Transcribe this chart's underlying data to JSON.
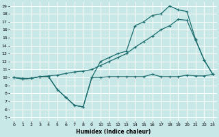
{
  "xlabel": "Humidex (Indice chaleur)",
  "bg_color": "#c8e8e8",
  "grid_color": "#ffffff",
  "line_color": "#1a6b6b",
  "xlim": [
    -0.5,
    23.5
  ],
  "ylim": [
    4.5,
    19.5
  ],
  "yticks": [
    5,
    6,
    7,
    8,
    9,
    10,
    11,
    12,
    13,
    14,
    15,
    16,
    17,
    18,
    19
  ],
  "xticks": [
    0,
    1,
    2,
    3,
    4,
    5,
    6,
    7,
    8,
    9,
    10,
    11,
    12,
    13,
    14,
    15,
    16,
    17,
    18,
    19,
    20,
    21,
    22,
    23
  ],
  "line1_x": [
    0,
    1,
    2,
    3,
    4,
    5,
    6,
    7,
    8,
    9,
    10,
    11,
    12,
    13,
    14,
    15,
    16,
    17,
    18,
    19,
    20,
    21,
    22,
    23
  ],
  "line1_y": [
    10.0,
    9.8,
    9.9,
    10.1,
    10.1,
    8.5,
    7.5,
    6.5,
    6.3,
    10.0,
    10.0,
    10.1,
    10.1,
    10.1,
    10.1,
    10.1,
    10.4,
    10.1,
    10.1,
    10.1,
    10.3,
    10.2,
    10.2,
    10.4
  ],
  "line2_x": [
    0,
    1,
    2,
    3,
    4,
    5,
    6,
    7,
    8,
    9,
    10,
    11,
    12,
    13,
    14,
    15,
    16,
    17,
    18,
    19,
    20,
    21,
    22,
    23
  ],
  "line2_y": [
    10.0,
    9.9,
    9.9,
    10.1,
    10.2,
    10.3,
    10.5,
    10.7,
    10.8,
    11.0,
    11.5,
    12.0,
    12.5,
    13.0,
    13.8,
    14.5,
    15.2,
    16.0,
    16.5,
    17.3,
    17.2,
    14.7,
    12.2,
    10.4
  ],
  "line3_x": [
    0,
    1,
    2,
    3,
    4,
    5,
    6,
    7,
    8,
    9,
    10,
    11,
    12,
    13,
    14,
    15,
    16,
    17,
    18,
    19,
    20,
    21,
    22,
    23
  ],
  "line3_y": [
    10.0,
    9.8,
    9.9,
    10.1,
    10.1,
    8.5,
    7.5,
    6.5,
    6.3,
    10.0,
    12.0,
    12.5,
    13.0,
    13.3,
    16.5,
    17.0,
    17.8,
    18.0,
    19.0,
    18.5,
    18.3,
    14.8,
    12.2,
    10.4
  ]
}
